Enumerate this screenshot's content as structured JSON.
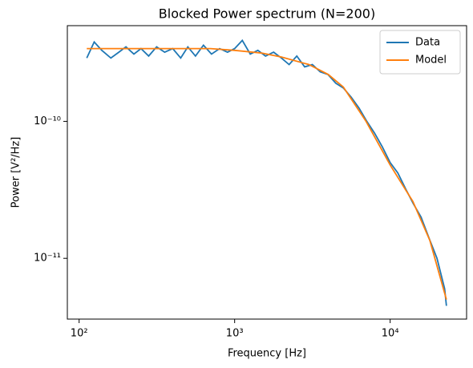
{
  "chart_data": {
    "type": "line",
    "title": "Blocked Power spectrum (N=200)",
    "x_label": "Frequency [Hz]",
    "y_label": "Power [V²/Hz]",
    "log_x": true,
    "log_y": true,
    "legend": "upper right",
    "xlim": [
      84,
      31000
    ],
    "ylim": [
      3.6e-12,
      5e-10
    ],
    "xticks": [
      {
        "value": 100,
        "label": "10²"
      },
      {
        "value": 1000,
        "label": "10³"
      },
      {
        "value": 10000,
        "label": "10⁴"
      }
    ],
    "yticks": [
      {
        "value": 1e-11,
        "label": "10⁻¹¹"
      },
      {
        "value": 1e-10,
        "label": "10⁻¹⁰"
      }
    ],
    "series": [
      {
        "name": "Data",
        "color": "#1f77b4",
        "x": [
          112,
          125,
          140,
          160,
          180,
          200,
          225,
          250,
          280,
          315,
          355,
          400,
          450,
          500,
          560,
          630,
          710,
          800,
          900,
          1000,
          1120,
          1260,
          1410,
          1580,
          1780,
          2000,
          2240,
          2510,
          2820,
          3160,
          3550,
          3980,
          4470,
          5010,
          5620,
          6310,
          7080,
          7940,
          8910,
          10000,
          11200,
          12600,
          14100,
          15800,
          17800,
          20000,
          22400,
          23000
        ],
        "values": [
          2.9e-10,
          3.8e-10,
          3.3e-10,
          2.9e-10,
          3.2e-10,
          3.5e-10,
          3.1e-10,
          3.4e-10,
          3e-10,
          3.5e-10,
          3.2e-10,
          3.4e-10,
          2.9e-10,
          3.5e-10,
          3e-10,
          3.6e-10,
          3.1e-10,
          3.4e-10,
          3.2e-10,
          3.4e-10,
          3.9e-10,
          3.1e-10,
          3.3e-10,
          3e-10,
          3.2e-10,
          2.9e-10,
          2.6e-10,
          3e-10,
          2.5e-10,
          2.6e-10,
          2.3e-10,
          2.2e-10,
          1.9e-10,
          1.75e-10,
          1.5e-10,
          1.25e-10,
          1e-10,
          8.2e-11,
          6.5e-11,
          5e-11,
          4.2e-11,
          3.2e-11,
          2.5e-11,
          2e-11,
          1.4e-11,
          1e-11,
          6e-12,
          4.5e-12
        ]
      },
      {
        "name": "Model",
        "color": "#ff7f0e",
        "x": [
          112,
          200,
          400,
          700,
          1000,
          1500,
          2000,
          3000,
          4000,
          5000,
          7000,
          10000,
          14000,
          18000,
          23000
        ],
        "values": [
          3.4e-10,
          3.4e-10,
          3.4e-10,
          3.4e-10,
          3.3e-10,
          3.15e-10,
          2.95e-10,
          2.6e-10,
          2.2e-10,
          1.78e-10,
          1e-10,
          4.8e-11,
          2.6e-11,
          1.35e-11,
          5e-12
        ]
      }
    ]
  }
}
